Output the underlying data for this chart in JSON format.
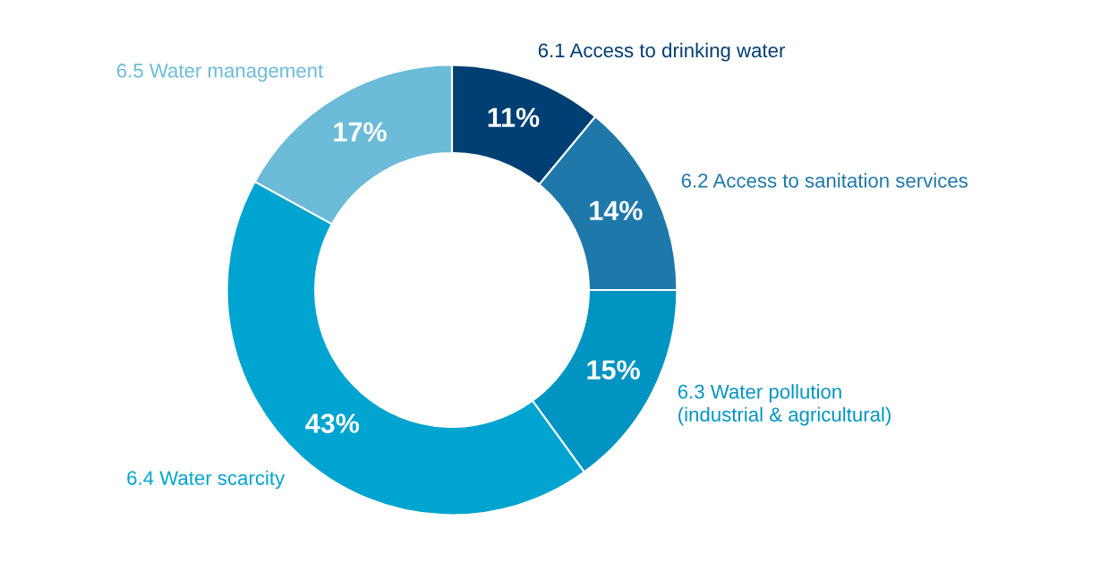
{
  "chart_data": {
    "type": "donut",
    "categories": [
      "6.1 Access to drinking water",
      "6.2 Access to sanitation services",
      "6.3 Water pollution\n(industrial & agricultural)",
      "6.4 Water scarcity",
      "6.5 Water management"
    ],
    "values": [
      11,
      14,
      15,
      43,
      17
    ],
    "colors": [
      "#003f73",
      "#1f78aa",
      "#0094c3",
      "#00a4d0",
      "#6bbbd9"
    ],
    "value_labels": [
      "11%",
      "14%",
      "15%",
      "43%",
      "17%"
    ],
    "legend": false
  }
}
